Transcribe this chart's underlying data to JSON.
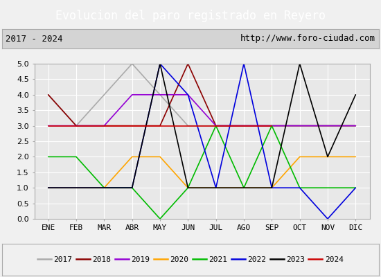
{
  "title": "Evolucion del paro registrado en Reyero",
  "subtitle_left": "2017 - 2024",
  "subtitle_right": "http://www.foro-ciudad.com",
  "xlabel_months": [
    "ENE",
    "FEB",
    "MAR",
    "ABR",
    "MAY",
    "JUN",
    "JUL",
    "AGO",
    "SEP",
    "OCT",
    "NOV",
    "DIC"
  ],
  "ylim": [
    0.0,
    5.0
  ],
  "yticks": [
    0.0,
    0.5,
    1.0,
    1.5,
    2.0,
    2.5,
    3.0,
    3.5,
    4.0,
    4.5,
    5.0
  ],
  "series": [
    {
      "year": "2017",
      "color": "#aaaaaa",
      "data": [
        4,
        3,
        4,
        5,
        4,
        3,
        3,
        3,
        3,
        3,
        3,
        3
      ]
    },
    {
      "year": "2018",
      "color": "#8b0000",
      "data": [
        4,
        3,
        3,
        3,
        3,
        5,
        3,
        3,
        3,
        3,
        3,
        3
      ]
    },
    {
      "year": "2019",
      "color": "#9400d3",
      "data": [
        3,
        3,
        3,
        4,
        4,
        4,
        3,
        3,
        3,
        3,
        3,
        3
      ]
    },
    {
      "year": "2020",
      "color": "#ffa500",
      "data": [
        1,
        1,
        1,
        2,
        2,
        1,
        1,
        1,
        1,
        2,
        2,
        2
      ]
    },
    {
      "year": "2021",
      "color": "#00bb00",
      "data": [
        2,
        2,
        1,
        1,
        0,
        1,
        3,
        1,
        3,
        1,
        1,
        1
      ]
    },
    {
      "year": "2022",
      "color": "#0000dd",
      "data": [
        1,
        1,
        1,
        1,
        5,
        4,
        1,
        5,
        1,
        1,
        0,
        1
      ]
    },
    {
      "year": "2023",
      "color": "#000000",
      "data": [
        1,
        1,
        1,
        1,
        5,
        1,
        1,
        1,
        1,
        5,
        2,
        4
      ]
    },
    {
      "year": "2024",
      "color": "#cc0000",
      "data": [
        3,
        3,
        3,
        3,
        3,
        3,
        3,
        3,
        3,
        null,
        null,
        null
      ]
    }
  ],
  "legend_years": [
    "2017",
    "2018",
    "2019",
    "2020",
    "2021",
    "2022",
    "2023",
    "2024"
  ],
  "legend_colors": [
    "#aaaaaa",
    "#8b0000",
    "#9400d3",
    "#ffa500",
    "#00bb00",
    "#0000dd",
    "#000000",
    "#cc0000"
  ],
  "title_bg": "#4d8bc9",
  "title_fg": "#ffffff",
  "subtitle_bg": "#d4d4d4",
  "subtitle_border": "#aaaaaa",
  "plot_bg": "#e8e8e8",
  "outer_bg": "#f0f0f0",
  "grid_color": "#ffffff",
  "title_fontsize": 12,
  "subtitle_fontsize": 9,
  "tick_fontsize": 8,
  "legend_fontsize": 8
}
